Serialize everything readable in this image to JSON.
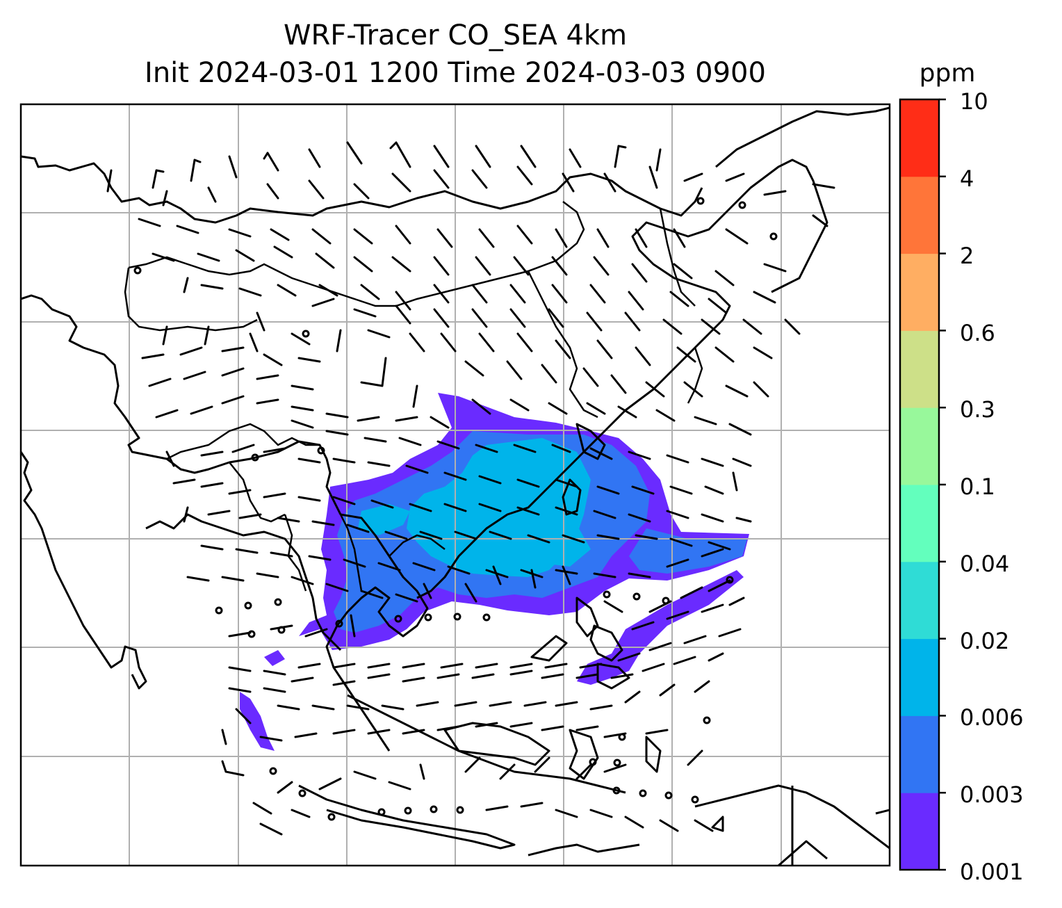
{
  "title": {
    "line1": "WRF-Tracer CO_SEA 4km",
    "line2": "Init 2024-03-01 1200 Time 2024-03-03 0900"
  },
  "colorbar": {
    "unit": "ppm",
    "levels": [
      "0.001",
      "0.003",
      "0.006",
      "0.02",
      "0.04",
      "0.1",
      "0.3",
      "0.6",
      "2",
      "4",
      "10"
    ],
    "colors": [
      "#6a2bff",
      "#3175f3",
      "#00b4ea",
      "#2fdcd6",
      "#63ffbd",
      "#98f89b",
      "#cde088",
      "#ffae62",
      "#ff7539",
      "#ff2d17"
    ]
  },
  "map": {
    "gridlines": true,
    "features": [
      "coastlines",
      "country-borders",
      "wind-barbs",
      "calm-wind-circles",
      "tracer-plume"
    ]
  }
}
